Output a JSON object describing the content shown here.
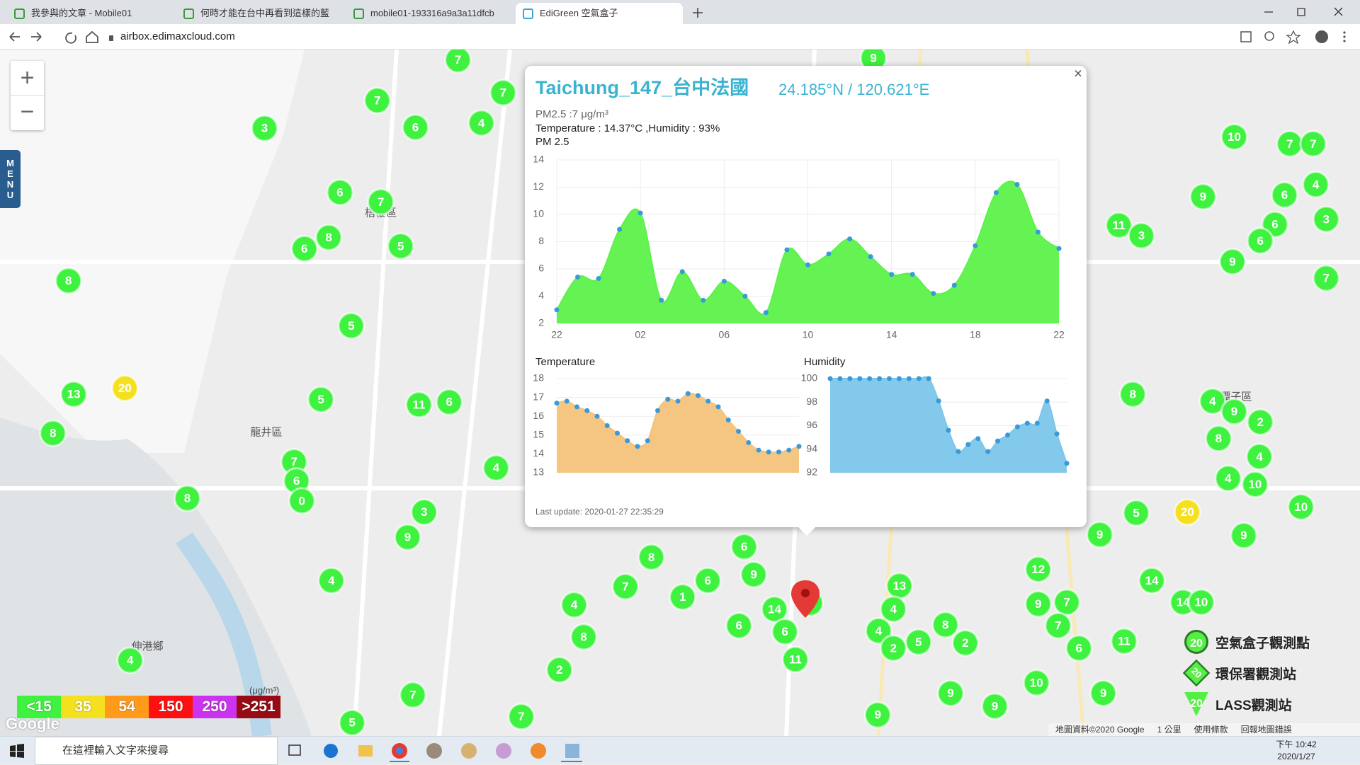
{
  "browser": {
    "tabs": [
      "我參與的文章 - Mobile01",
      "何時才能在台中再看到這樣的藍",
      "mobile01-193316a9a3a11dfcb",
      "EdiGreen 空氣盒子"
    ],
    "url": "airbox.edimaxcloud.com"
  },
  "map": {
    "zoom_in": "+",
    "zoom_out": "−",
    "menu": "MENU",
    "places": [
      "梧棲區",
      "龍井區",
      "伸港鄉",
      "潭子區"
    ],
    "markers": [
      7,
      3,
      7,
      6,
      4,
      7,
      6,
      7,
      8,
      6,
      5,
      8,
      5,
      13,
      20,
      8,
      5,
      11,
      6,
      7,
      6,
      0,
      8,
      4,
      3,
      9,
      4,
      4,
      7,
      5,
      7,
      8,
      7,
      1,
      6,
      6,
      9,
      14,
      6,
      11,
      4,
      8,
      2,
      13,
      4,
      4,
      5,
      2,
      8,
      2,
      9,
      12,
      9,
      7,
      7,
      6,
      10,
      5,
      20,
      9,
      11,
      8,
      11,
      3,
      10,
      7,
      7,
      9,
      6,
      4,
      3,
      6,
      6,
      9,
      7,
      4,
      9,
      2,
      8,
      4,
      4,
      10,
      10,
      9,
      14,
      14,
      10,
      9,
      9,
      9,
      9,
      2,
      6
    ]
  },
  "legend": {
    "unit": "(μg/m³)",
    "levels": [
      {
        "label": "<15",
        "color": "#3ff23f",
        "max": 15
      },
      {
        "label": "35",
        "color": "#f5e020",
        "max": 35
      },
      {
        "label": "54",
        "color": "#ff9a1a",
        "max": 54
      },
      {
        "label": "150",
        "color": "#ff1010",
        "max": 150
      },
      {
        "label": "250",
        "color": "#cc33ee",
        "max": 250
      },
      {
        "label": ">251",
        "color": "#990b14",
        "max": null
      }
    ]
  },
  "stations": [
    {
      "label": "空氣盒子觀測點",
      "icon": "20"
    },
    {
      "label": "環保署觀測站",
      "icon": "20"
    },
    {
      "label": "LASS觀測站",
      "icon": "20"
    }
  ],
  "attribution": {
    "logo": "Google",
    "data": "地圖資料©2020 Google",
    "scale": "1 公里",
    "terms": "使用條款",
    "report": "回報地圖錯誤"
  },
  "popup": {
    "title": "Taichung_147_台中法國",
    "coords": "24.185°N / 120.621°E",
    "pm": "PM2.5 :7 μg/m³",
    "env": "Temperature : 14.37°C ,Humidity : 93%",
    "updated": "Last update: 2020-01-27 22:35:29",
    "close": "×"
  },
  "chart_data": [
    {
      "type": "area",
      "title": "PM 2.5",
      "x": [
        0,
        1,
        2,
        3,
        4,
        5,
        6,
        7,
        8,
        9,
        10,
        11,
        12,
        13,
        14,
        15,
        16,
        17,
        18,
        19,
        20,
        21,
        22,
        23,
        24
      ],
      "values": [
        3.0,
        5.4,
        5.3,
        8.9,
        10.1,
        3.7,
        5.8,
        3.7,
        5.1,
        4.0,
        2.8,
        7.4,
        6.3,
        7.1,
        8.2,
        6.9,
        5.6,
        5.6,
        4.2,
        4.8,
        7.7,
        11.6,
        12.2,
        8.7,
        7.5
      ],
      "xlim": [
        0,
        24
      ],
      "ylim": [
        2,
        14
      ],
      "yticks": [
        2,
        4,
        6,
        8,
        10,
        12,
        14
      ],
      "xticks": [
        {
          "value": 0,
          "label": "22"
        },
        {
          "value": 4,
          "label": "02"
        },
        {
          "value": 8,
          "label": "06"
        },
        {
          "value": 12,
          "label": "10"
        },
        {
          "value": 16,
          "label": "14"
        },
        {
          "value": 20,
          "label": "18"
        },
        {
          "value": 24,
          "label": "22"
        }
      ],
      "color": "#5cf24a",
      "point_color": "#3a9ad9",
      "grid": true
    },
    {
      "type": "area",
      "title": "Temperature",
      "x": [
        0,
        1,
        2,
        3,
        4,
        5,
        6,
        7,
        8,
        9,
        10,
        11,
        12,
        13,
        14,
        15,
        16,
        17,
        18,
        19,
        20,
        21,
        22,
        23,
        24
      ],
      "values": [
        16.7,
        16.8,
        16.5,
        16.3,
        16.0,
        15.5,
        15.1,
        14.7,
        14.4,
        14.7,
        16.3,
        16.9,
        16.8,
        17.2,
        17.1,
        16.8,
        16.5,
        15.8,
        15.2,
        14.6,
        14.2,
        14.1,
        14.1,
        14.2,
        14.4
      ],
      "xlim": [
        0,
        24
      ],
      "ylim": [
        13,
        18
      ],
      "yticks": [
        13,
        14,
        15,
        16,
        17,
        18
      ],
      "color": "#f4c37a",
      "point_color": "#3a9ad9",
      "grid": true
    },
    {
      "type": "area",
      "title": "Humidity",
      "x": [
        0,
        1,
        2,
        3,
        4,
        5,
        6,
        7,
        8,
        9,
        10,
        11,
        12,
        13,
        14,
        15,
        16,
        17,
        18,
        19,
        20,
        21,
        22,
        23,
        24
      ],
      "values": [
        100,
        100,
        100,
        100,
        100,
        100,
        100,
        100,
        100,
        100,
        100,
        98.1,
        95.6,
        93.8,
        94.4,
        94.9,
        93.8,
        94.7,
        95.2,
        95.9,
        96.2,
        96.2,
        98.1,
        95.3,
        92.8
      ],
      "xlim": [
        0,
        24
      ],
      "ylim": [
        92,
        100
      ],
      "yticks": [
        92,
        94,
        96,
        98,
        100
      ],
      "color": "#7cc6ea",
      "point_color": "#3a9ad9",
      "grid": true
    }
  ],
  "taskbar": {
    "search": "在這裡輸入文字來搜尋",
    "time": "下午 10:42",
    "date": "2020/1/27"
  }
}
